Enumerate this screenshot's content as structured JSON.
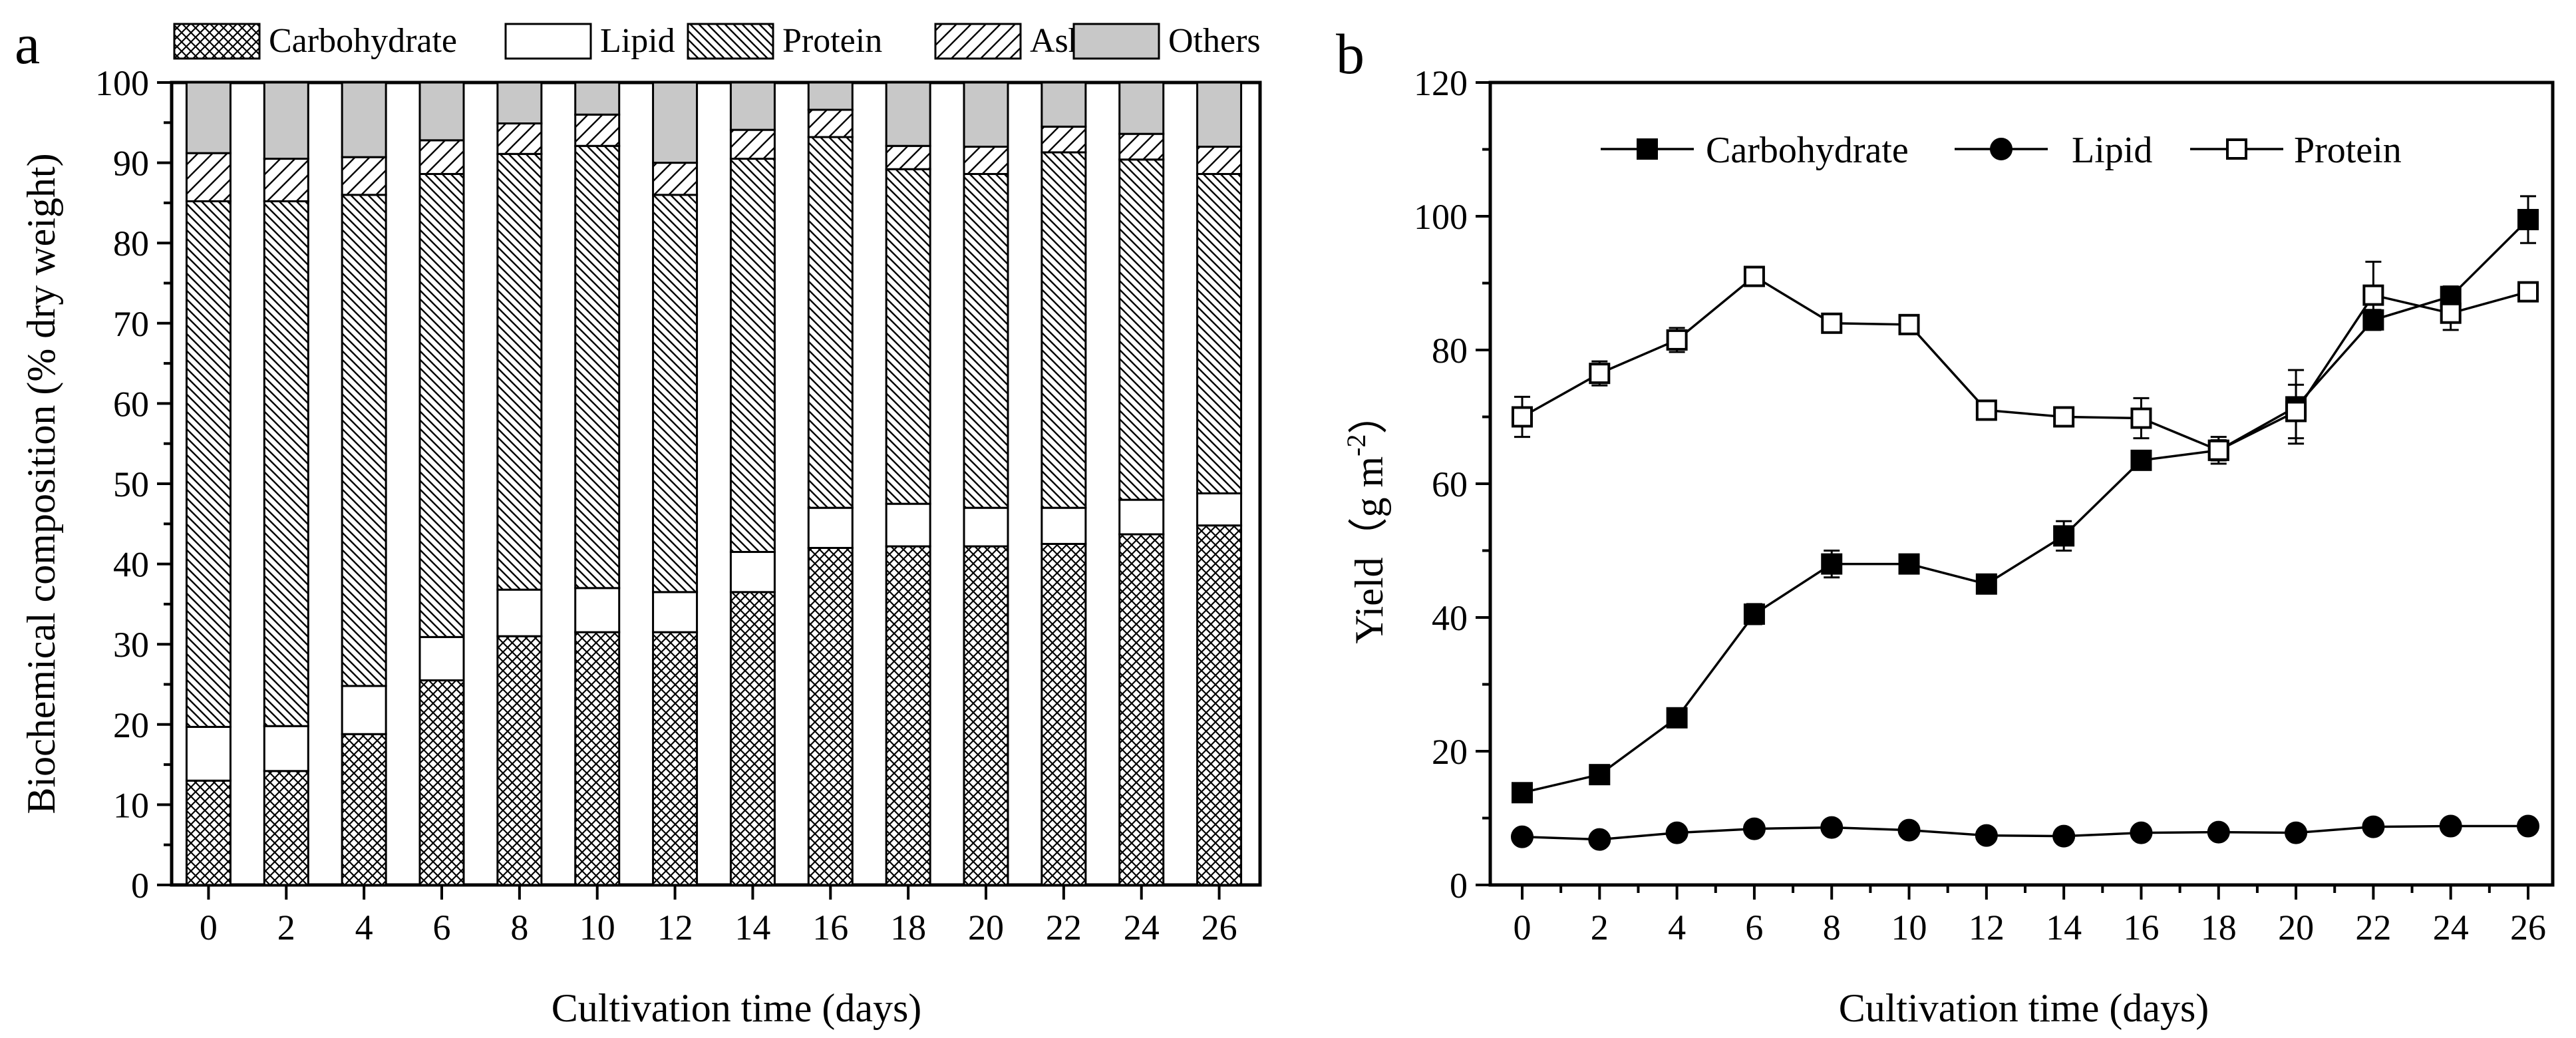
{
  "colors": {
    "carbohydrate_fill": "#000000",
    "lipid_fill": "#ffffff",
    "protein_fill": "#000000",
    "ash_fill": "#000000",
    "others_fill": "#c8c8c8",
    "axis": "#000000"
  },
  "chart_data": [
    {
      "type": "bar",
      "stacked": true,
      "panel_label": "a",
      "title": "",
      "xlabel": "Cultivation time (days)",
      "ylabel": "Biochemical composition (% dry weight)",
      "ylim": [
        0,
        100
      ],
      "yticks": [
        "0",
        "10",
        "20",
        "30",
        "40",
        "50",
        "60",
        "70",
        "80",
        "90",
        "100"
      ],
      "categories": [
        "0",
        "2",
        "4",
        "6",
        "8",
        "10",
        "12",
        "14",
        "16",
        "18",
        "20",
        "22",
        "24",
        "26"
      ],
      "legend_position": "top",
      "series": [
        {
          "name": "Carbohydrate",
          "pattern": "crosshatch",
          "values": [
            13.0,
            14.2,
            18.8,
            25.5,
            31.0,
            31.5,
            31.5,
            36.5,
            42.0,
            42.2,
            42.2,
            42.5,
            43.7,
            44.8
          ]
        },
        {
          "name": "Lipid",
          "pattern": "white",
          "values": [
            6.7,
            5.6,
            6.0,
            5.4,
            5.8,
            5.5,
            5.0,
            5.0,
            5.0,
            5.3,
            4.8,
            4.5,
            4.3,
            4.0
          ]
        },
        {
          "name": "Protein",
          "pattern": "dense-back-diagonal",
          "values": [
            65.5,
            65.4,
            61.2,
            57.7,
            54.3,
            55.1,
            49.5,
            49.0,
            46.2,
            41.7,
            41.6,
            44.3,
            42.4,
            39.8
          ]
        },
        {
          "name": "Ash",
          "pattern": "sparse-forward-diagonal",
          "values": [
            6.0,
            5.3,
            4.7,
            4.2,
            3.8,
            3.9,
            4.0,
            3.6,
            3.4,
            2.9,
            3.4,
            3.2,
            3.2,
            3.4
          ]
        },
        {
          "name": "Others",
          "pattern": "grey",
          "values": [
            8.8,
            9.5,
            9.3,
            7.2,
            5.1,
            4.0,
            10.0,
            5.9,
            3.4,
            7.9,
            8.0,
            5.5,
            6.4,
            8.0
          ]
        }
      ]
    },
    {
      "type": "line",
      "panel_label": "b",
      "title": "",
      "xlabel": "Cultivation time (days)",
      "ylabel_main": "Yield",
      "ylabel_unit": "（g m",
      "ylabel_sup": "-2",
      "ylabel_close": "）",
      "ylim": [
        0,
        120
      ],
      "yticks": [
        "0",
        "20",
        "40",
        "60",
        "80",
        "100",
        "120"
      ],
      "x": [
        0,
        2,
        4,
        6,
        8,
        10,
        12,
        14,
        16,
        18,
        20,
        22,
        24,
        26
      ],
      "xtick_labels": [
        "0",
        "2",
        "4",
        "6",
        "8",
        "10",
        "12",
        "14",
        "16",
        "18",
        "20",
        "22",
        "24",
        "26"
      ],
      "legend_position": "top-center",
      "series": [
        {
          "name": "Carbohydrate",
          "marker": "filled-square",
          "values": [
            13.8,
            16.5,
            25.0,
            40.5,
            48.0,
            48.0,
            45.0,
            52.2,
            63.5,
            65.0,
            71.5,
            84.5,
            88.0,
            99.5
          ],
          "errors": [
            0.5,
            0.5,
            0.5,
            1.5,
            2.0,
            0.6,
            0.6,
            2.2,
            0.6,
            1.5,
            5.5,
            1.5,
            1.5,
            3.5
          ]
        },
        {
          "name": "Lipid",
          "marker": "filled-circle",
          "values": [
            7.2,
            6.8,
            7.8,
            8.4,
            8.6,
            8.2,
            7.4,
            7.3,
            7.8,
            7.9,
            7.8,
            8.7,
            8.8,
            8.8
          ],
          "errors": [
            0,
            0,
            0,
            0,
            0,
            0,
            0,
            0,
            0,
            0,
            0,
            0,
            0,
            0
          ]
        },
        {
          "name": "Protein",
          "marker": "open-square",
          "values": [
            70.0,
            76.5,
            81.5,
            91.0,
            84.0,
            83.8,
            71.0,
            70.0,
            69.8,
            65.0,
            70.8,
            88.2,
            85.5,
            88.7
          ],
          "errors": [
            3.0,
            1.8,
            1.8,
            1.2,
            0.6,
            0.6,
            0.6,
            1.3,
            3.0,
            2.0,
            4.0,
            5.0,
            2.5,
            1.0
          ]
        }
      ]
    }
  ]
}
